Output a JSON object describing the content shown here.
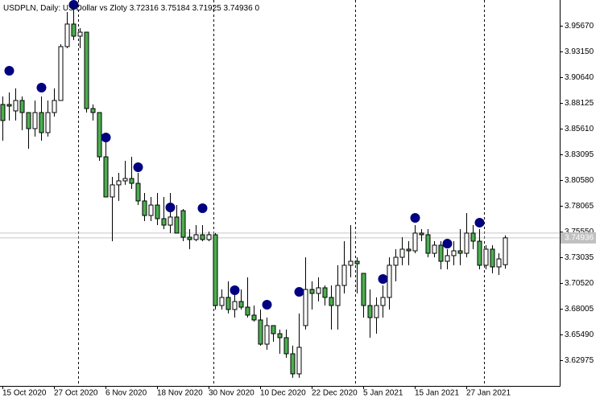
{
  "chart_data": {
    "type": "candlestick",
    "symbol": "USDPLN, Daily:",
    "description": "US Dollar vs Zloty",
    "ohlc": [
      3.72316,
      3.75184,
      3.71925,
      3.74936
    ],
    "volume": 0,
    "categories": [
      "15 Oct 2020",
      null,
      null,
      null,
      null,
      null,
      null,
      null,
      "27 Oct 2020",
      null,
      null,
      null,
      null,
      null,
      null,
      null,
      "6 Nov 2020",
      null,
      null,
      null,
      null,
      null,
      null,
      null,
      "18 Nov 2020",
      null,
      null,
      null,
      null,
      null,
      null,
      null,
      "30 Nov 2020",
      null,
      null,
      null,
      null,
      null,
      null,
      null,
      "10 Dec 2020",
      null,
      null,
      null,
      null,
      null,
      null,
      null,
      "22 Dec 2020",
      null,
      null,
      null,
      null,
      null,
      null,
      null,
      "5 Jan 2021",
      null,
      null,
      null,
      null,
      null,
      null,
      null,
      "15 Jan 2021",
      null,
      null,
      null,
      null,
      null,
      null,
      null,
      "27 Jan 2021",
      null,
      null,
      null,
      null,
      null,
      null
    ],
    "open": [
      3.8796,
      3.8796,
      3.8733,
      3.8835,
      3.8717,
      3.856,
      3.8717,
      3.8521,
      3.8717,
      3.8835,
      3.9361,
      3.9581,
      3.9463,
      3.9502,
      3.8756,
      3.8717,
      3.8285,
      3.7893,
      3.8011,
      3.805,
      3.8073,
      3.8026,
      3.7854,
      3.7712,
      3.7814,
      3.7681,
      3.7618,
      3.7697,
      3.7759,
      3.75,
      3.7477,
      3.7524,
      3.7477,
      3.7524,
      3.6833,
      3.6912,
      3.6794,
      3.6872,
      3.6817,
      3.6739,
      3.6692,
      3.6456,
      3.6637,
      3.6558,
      3.6519,
      3.6362,
      3.6166,
      3.6637,
      3.699,
      3.6951,
      3.7006,
      3.6912,
      3.6833,
      3.7029,
      3.7226,
      3.7265,
      3.7147,
      3.6833,
      3.6715,
      3.6833,
      3.6912,
      3.7226,
      3.7304,
      3.7383,
      3.7367,
      3.754,
      3.7524,
      3.7343,
      3.7422,
      3.7265,
      3.732,
      3.7367,
      3.7343,
      3.754,
      3.7461,
      3.7226,
      3.7383,
      3.721,
      3.72316
    ],
    "high": [
      3.8874,
      3.8913,
      3.8953,
      3.8874,
      3.8717,
      3.8835,
      3.8874,
      3.8835,
      3.8953,
      3.9384,
      3.9698,
      3.9816,
      3.9541,
      3.9502,
      3.8796,
      3.8717,
      3.8482,
      3.8089,
      3.8128,
      3.8246,
      3.8285,
      3.8128,
      3.7932,
      3.7893,
      3.7932,
      3.7893,
      3.7932,
      3.7814,
      3.7775,
      3.7579,
      3.7618,
      3.7618,
      3.7555,
      3.754,
      3.699,
      3.7069,
      3.699,
      3.699,
      3.7108,
      3.6833,
      3.6794,
      3.6715,
      3.6637,
      3.6598,
      3.6598,
      3.6441,
      3.6755,
      3.7304,
      3.7069,
      3.7108,
      3.7029,
      3.7029,
      3.7226,
      3.7461,
      3.7618,
      3.7304,
      3.7147,
      3.699,
      3.6912,
      3.7029,
      3.7304,
      3.7383,
      3.75,
      3.7461,
      3.7618,
      3.7579,
      3.7579,
      3.7461,
      3.7461,
      3.7383,
      3.7461,
      3.7579,
      3.7736,
      3.7618,
      3.7579,
      3.7422,
      3.7422,
      3.7343,
      3.75184
    ],
    "low": [
      3.8442,
      3.8639,
      3.8639,
      3.8544,
      3.8364,
      3.8482,
      3.8442,
      3.8482,
      3.8678,
      3.8835,
      3.9345,
      3.9424,
      3.9345,
      3.8717,
      3.8639,
      3.8246,
      3.7893,
      3.7461,
      3.7854,
      3.8011,
      3.7971,
      3.7814,
      3.7657,
      3.7657,
      3.7618,
      3.7579,
      3.754,
      3.754,
      3.7461,
      3.7383,
      3.7461,
      3.7461,
      3.7461,
      3.6794,
      3.6794,
      3.6755,
      3.6715,
      3.6794,
      3.6715,
      3.6676,
      3.6441,
      3.6401,
      3.648,
      3.6362,
      3.6323,
      3.6127,
      3.6127,
      3.6598,
      3.6794,
      3.6872,
      3.6833,
      3.6598,
      3.6598,
      3.6951,
      3.7108,
      3.6951,
      3.6715,
      3.6519,
      3.6558,
      3.6715,
      3.6794,
      3.7069,
      3.7226,
      3.7226,
      3.7343,
      3.7461,
      3.7304,
      3.7304,
      3.7186,
      3.7186,
      3.7226,
      3.7226,
      3.7304,
      3.7383,
      3.7186,
      3.7186,
      3.7147,
      3.7131,
      3.71925
    ],
    "close": [
      3.8639,
      3.878,
      3.8835,
      3.8717,
      3.856,
      3.8717,
      3.8521,
      3.8717,
      3.8835,
      3.9361,
      3.9581,
      3.9463,
      3.9502,
      3.8756,
      3.8717,
      3.8285,
      3.7893,
      3.8011,
      3.805,
      3.8073,
      3.8026,
      3.7854,
      3.7712,
      3.7814,
      3.7681,
      3.7618,
      3.7697,
      3.754,
      3.75,
      3.7477,
      3.7524,
      3.7477,
      3.7524,
      3.6833,
      3.6912,
      3.6794,
      3.6872,
      3.6817,
      3.6739,
      3.6692,
      3.6456,
      3.6637,
      3.6558,
      3.6519,
      3.6362,
      3.6166,
      3.6425,
      3.699,
      3.6951,
      3.7006,
      3.6912,
      3.6833,
      3.7029,
      3.7226,
      3.7265,
      3.7241,
      3.6833,
      3.6715,
      3.6833,
      3.6912,
      3.7226,
      3.7304,
      3.7383,
      3.7367,
      3.754,
      3.7524,
      3.7343,
      3.7422,
      3.7265,
      3.732,
      3.7367,
      3.7343,
      3.754,
      3.7461,
      3.7226,
      3.7383,
      3.721,
      3.7288,
      3.74936
    ],
    "up_color": "#ffffff",
    "down_color": "#4caf50",
    "markers": {
      "color": "#000080",
      "index": [
        1,
        6,
        11,
        16,
        21,
        26,
        31,
        36,
        41,
        46,
        59,
        64,
        69,
        74
      ],
      "values": [
        3.9125,
        3.896,
        3.9769,
        3.8474,
        3.8183,
        3.7791,
        3.7783,
        3.6982,
        3.6841,
        3.6966,
        3.7092,
        3.7689,
        3.7437,
        3.7642
      ]
    },
    "bid": 3.74936,
    "ask": 3.754,
    "ylim": [
      3.6048,
      3.9816
    ],
    "yticks": [
      {
        "value": 3.9567,
        "label": "3.95670"
      },
      {
        "value": 3.9315,
        "label": "3.93150"
      },
      {
        "value": 3.9064,
        "label": "3.90640"
      },
      3.88125,
      {
        "value": 3.8561,
        "label": "3.85610"
      },
      3.83095,
      {
        "value": 3.8058,
        "label": "3.80580"
      },
      3.78065,
      {
        "value": 3.7555,
        "label": "3.75550"
      },
      3.73035,
      {
        "value": 3.7052,
        "label": "3.70520"
      },
      3.68005,
      {
        "value": 3.6549,
        "label": "3.65490"
      },
      3.62975
    ]
  }
}
